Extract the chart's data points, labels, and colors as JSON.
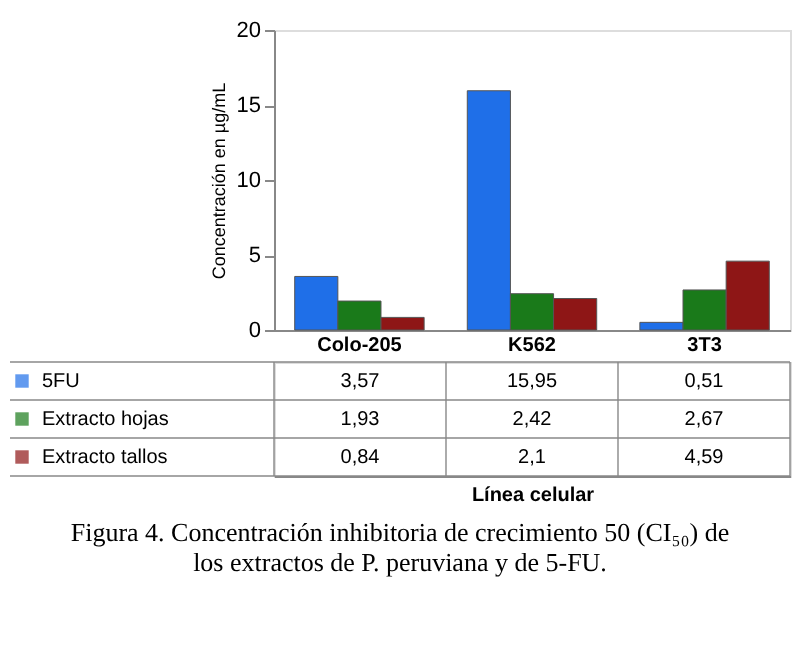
{
  "chart_data": {
    "type": "bar",
    "categories": [
      "Colo-205",
      "K562",
      "3T3"
    ],
    "series": [
      {
        "name": "5FU",
        "color": "#1f6fe8",
        "values": [
          3.57,
          15.95,
          0.51
        ],
        "value_labels": [
          "3,57",
          "15,95",
          "0,51"
        ]
      },
      {
        "name": "Extracto hojas",
        "color": "#1a7a1a",
        "values": [
          1.93,
          2.42,
          2.67
        ],
        "value_labels": [
          "1,93",
          "2,42",
          "2,67"
        ]
      },
      {
        "name": "Extracto tallos",
        "color": "#8e1616",
        "values": [
          0.84,
          2.1,
          4.59
        ],
        "value_labels": [
          "0,84",
          "2,1",
          "4,59"
        ]
      }
    ],
    "ylabel": "Concentración en µg/mL",
    "ylim": [
      0,
      20
    ],
    "yticks": [
      0,
      5,
      10,
      15,
      20
    ],
    "grid": false,
    "legend": "bottom left",
    "annotations": [
      "Línea celular",
      "Figura 4. Concentración inhibitoria de crecimiento 50 (CI₅₀) de los extractos de P. peruviana y de 5-FU."
    ]
  }
}
